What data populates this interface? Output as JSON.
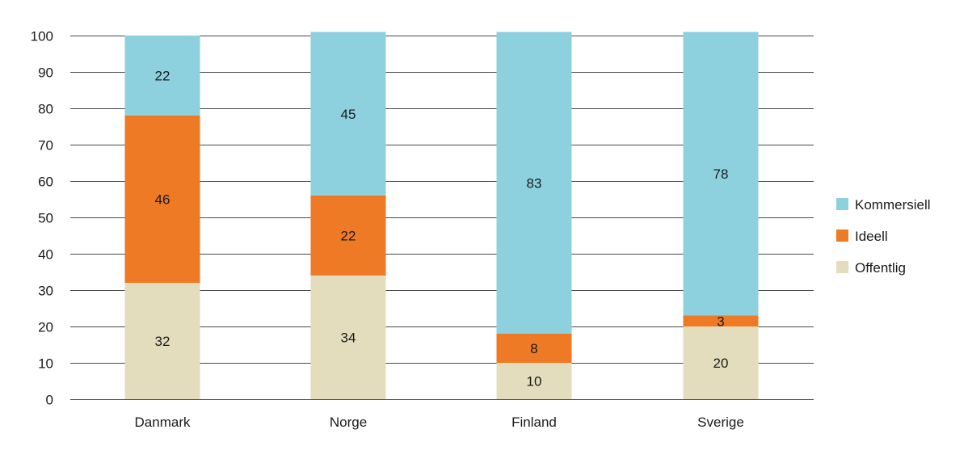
{
  "chart_data": {
    "type": "bar",
    "stacked": true,
    "title": "",
    "xlabel": "",
    "ylabel": "",
    "ylim": [
      0,
      100
    ],
    "yticks": [
      0,
      10,
      20,
      30,
      40,
      50,
      60,
      70,
      80,
      90,
      100
    ],
    "grid": true,
    "legend_position": "right",
    "categories": [
      "Danmark",
      "Norge",
      "Finland",
      "Sverige"
    ],
    "series": [
      {
        "name": "Offentlig",
        "color": "#e3dcbd",
        "values": [
          32,
          34,
          10,
          20
        ]
      },
      {
        "name": "Ideell",
        "color": "#ef7a25",
        "values": [
          46,
          22,
          8,
          3
        ]
      },
      {
        "name": "Kommersiell",
        "color": "#8dd1df",
        "values": [
          22,
          45,
          83,
          78
        ]
      }
    ],
    "legend_order": [
      "Kommersiell",
      "Ideell",
      "Offentlig"
    ]
  }
}
